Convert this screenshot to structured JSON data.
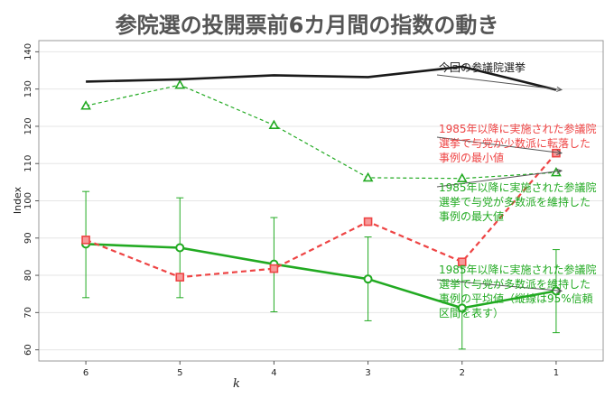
{
  "chart_data": {
    "type": "line",
    "title": "参院選の投開票前6カ月間の指数の動き",
    "ylabel": "Index",
    "xlabel": "k",
    "x": [
      6,
      5,
      4,
      3,
      2,
      1
    ],
    "xlim": [
      6.5,
      0.5
    ],
    "ylim": [
      57,
      143
    ],
    "yticks": [
      60,
      70,
      80,
      90,
      100,
      110,
      120,
      130,
      140
    ],
    "grid": true,
    "series": [
      {
        "key": "current",
        "name": "今回の参議院選挙",
        "color": "#1a1a1a",
        "style": "solid",
        "marker": "none",
        "values": [
          132.0,
          132.6,
          133.7,
          133.2,
          136.0,
          129.8
        ]
      },
      {
        "key": "max",
        "name": "1985年以降に実施された参議院選挙で与党が多数派を維持した事例の最大値",
        "color": "#22aa22",
        "style": "dashed",
        "marker": "triangle",
        "values": [
          125.5,
          131.1,
          120.3,
          106.2,
          106.0,
          107.6
        ]
      },
      {
        "key": "min",
        "name": "1985年以降に実施された参議院選挙で与党が少数派に転落した事例の最小値",
        "color": "#ee4444",
        "style": "dashed",
        "marker": "square",
        "values": [
          89.5,
          79.5,
          81.8,
          94.4,
          83.6,
          112.8
        ]
      },
      {
        "key": "mean",
        "name": "1985年以降に実施された参議院選挙で与党が多数派を維持した事例の平均値（縦線は95%信頼区間を表す）",
        "color": "#22aa22",
        "style": "solid",
        "marker": "circle",
        "values": [
          88.4,
          87.4,
          83.0,
          79.0,
          71.2,
          75.8
        ],
        "ci_low": [
          74.0,
          74.0,
          70.2,
          67.8,
          60.2,
          64.6
        ],
        "ci_high": [
          102.5,
          100.8,
          95.5,
          90.3,
          82.2,
          86.9
        ]
      }
    ],
    "annotations": [
      {
        "series": "current",
        "color": "#1a1a1a",
        "lines": [
          "今回の参議院選挙"
        ]
      },
      {
        "series": "min",
        "color": "#ee4444",
        "lines": [
          "1985年以降に実施された参議院",
          "選挙で与党が少数派に転落した",
          "事例の最小値"
        ]
      },
      {
        "series": "max",
        "color": "#22aa22",
        "lines": [
          "1985年以降に実施された参議院",
          "選挙で与党が多数派を維持した",
          "事例の最大値"
        ]
      },
      {
        "series": "mean",
        "color": "#22aa22",
        "lines": [
          "1985年以降に実施された参議院",
          "選挙で与党が多数派を維持した",
          "事例の平均値（縦線は95%信頼",
          "区間を表す）"
        ]
      }
    ]
  }
}
